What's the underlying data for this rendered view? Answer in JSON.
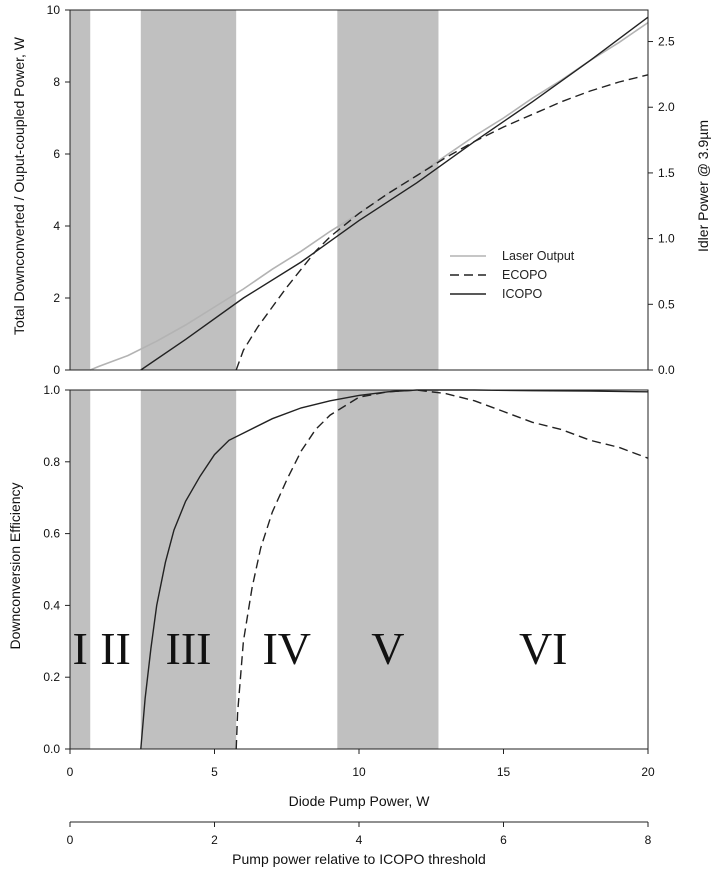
{
  "chart_data": [
    {
      "type": "line",
      "panel": "top",
      "xlabel": "",
      "ylabel": "Total Downconverted / Ouput-coupled Power, W",
      "y2label": "Idler Power @ 3.9µm",
      "xlim": [
        0,
        20
      ],
      "ylim": [
        0,
        10
      ],
      "y2lim": [
        0,
        2.74
      ],
      "xticks": [
        0,
        5,
        10,
        15,
        20
      ],
      "yticks": [
        "0",
        "2",
        "4",
        "6",
        "8",
        "10"
      ],
      "y2ticks": [
        "0.0",
        "0.5",
        "1.0",
        "1.5",
        "2.0",
        "2.5"
      ],
      "legend_position": "center-right",
      "series": [
        {
          "name": "Laser Output",
          "color": "#b3b3b3",
          "dash": "solid",
          "x": [
            0.7,
            1,
            2,
            3,
            4,
            5,
            6,
            7,
            8,
            9,
            10,
            11,
            12,
            13,
            14,
            15,
            16,
            17,
            18,
            19,
            20
          ],
          "y": [
            0,
            0.1,
            0.4,
            0.8,
            1.25,
            1.75,
            2.25,
            2.8,
            3.3,
            3.85,
            4.35,
            4.9,
            5.4,
            5.95,
            6.5,
            7.0,
            7.55,
            8.05,
            8.6,
            9.1,
            9.65
          ]
        },
        {
          "name": "ECOPO",
          "color": "#222222",
          "dash": "dashed",
          "x": [
            5.75,
            6,
            6.5,
            7,
            7.5,
            8,
            8.5,
            9,
            10,
            11,
            12,
            13,
            14,
            15,
            16,
            17,
            18,
            19,
            20
          ],
          "y": [
            0,
            0.55,
            1.2,
            1.75,
            2.3,
            2.8,
            3.3,
            3.7,
            4.35,
            4.9,
            5.4,
            5.9,
            6.35,
            6.75,
            7.1,
            7.45,
            7.75,
            8.0,
            8.2
          ]
        },
        {
          "name": "ICOPO",
          "color": "#222222",
          "dash": "solid",
          "x": [
            2.45,
            4,
            6,
            8,
            10,
            12,
            14,
            16,
            18,
            20
          ],
          "y": [
            0,
            0.85,
            2.0,
            3.0,
            4.15,
            5.2,
            6.35,
            7.45,
            8.6,
            9.8
          ]
        }
      ]
    },
    {
      "type": "line",
      "panel": "bottom",
      "xlabel": "Diode Pump Power, W",
      "x2label": "Pump power relative to ICOPO threshold",
      "ylabel": "Downconversion Efficiency",
      "xlim": [
        0,
        20
      ],
      "ylim": [
        0,
        1
      ],
      "xticks": [
        "0",
        "5",
        "10",
        "15",
        "20"
      ],
      "x2lim": [
        0,
        8
      ],
      "x2ticks": [
        "0",
        "2",
        "4",
        "6",
        "8"
      ],
      "yticks": [
        "0.0",
        "0.2",
        "0.4",
        "0.6",
        "0.8",
        "1.0"
      ],
      "series": [
        {
          "name": "ICOPO",
          "color": "#222222",
          "dash": "solid",
          "x": [
            2.45,
            2.6,
            2.8,
            3.0,
            3.3,
            3.6,
            4.0,
            4.5,
            5.0,
            5.5,
            6,
            7,
            8,
            9,
            10,
            11,
            12,
            14,
            16,
            18,
            20
          ],
          "y": [
            0,
            0.14,
            0.28,
            0.4,
            0.52,
            0.61,
            0.69,
            0.76,
            0.82,
            0.86,
            0.88,
            0.92,
            0.95,
            0.97,
            0.985,
            0.995,
            1.0,
            1.0,
            0.998,
            0.997,
            0.995
          ]
        },
        {
          "name": "ECOPO",
          "color": "#222222",
          "dash": "dashed",
          "x": [
            5.75,
            5.8,
            6.0,
            6.3,
            6.6,
            7.0,
            7.5,
            8.0,
            8.5,
            9.0,
            10,
            11,
            12,
            13,
            14,
            15,
            16,
            17,
            18,
            19,
            20
          ],
          "y": [
            0,
            0.1,
            0.3,
            0.45,
            0.56,
            0.66,
            0.75,
            0.83,
            0.89,
            0.93,
            0.98,
            0.995,
            1.0,
            0.99,
            0.97,
            0.94,
            0.91,
            0.89,
            0.86,
            0.84,
            0.81
          ]
        }
      ]
    }
  ],
  "regions": [
    {
      "label": "I",
      "start": 0,
      "end": 0.7,
      "shaded": true
    },
    {
      "label": "II",
      "start": 0.7,
      "end": 2.45,
      "shaded": false
    },
    {
      "label": "III",
      "start": 2.45,
      "end": 5.75,
      "shaded": true
    },
    {
      "label": "IV",
      "start": 5.75,
      "end": 9.25,
      "shaded": false
    },
    {
      "label": "V",
      "start": 9.25,
      "end": 12.75,
      "shaded": true
    },
    {
      "label": "VI",
      "start": 12.75,
      "end": 20,
      "shaded": false
    }
  ],
  "colors": {
    "shade": "#c0c0c0",
    "axis": "#222222"
  }
}
